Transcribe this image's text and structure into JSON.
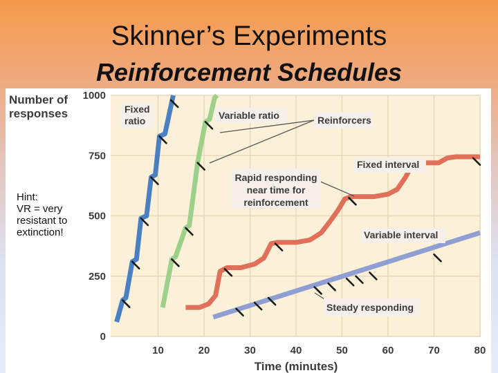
{
  "slide": {
    "title": "Skinner’s Experiments",
    "subtitle": "Reinforcement Schedules"
  },
  "hint": {
    "lines": [
      "Hint:",
      "VR = very",
      "resistant to",
      "extinction!"
    ]
  },
  "colors": {
    "plot_bg": "#fbf0d8",
    "grid": "#e8d9bb",
    "fixed_ratio": "#4a7fc1",
    "variable_ratio": "#9dd08a",
    "fixed_interval": "#e0705a",
    "variable_interval": "#8f9fd3",
    "label_box": "#f7f0ea"
  },
  "chart_data": {
    "type": "line",
    "title": "",
    "xlabel": "Time (minutes)",
    "ylabel": [
      "Number of",
      "responses"
    ],
    "xlim": [
      0,
      80
    ],
    "ylim": [
      0,
      1000
    ],
    "xticks": [
      10,
      20,
      30,
      40,
      50,
      60,
      70,
      80
    ],
    "yticks": [
      0,
      250,
      500,
      750,
      1000
    ],
    "series": [
      {
        "name": "Fixed ratio",
        "label_lines": [
          "Fixed",
          "ratio"
        ],
        "color_key": "fixed_ratio",
        "points": [
          [
            1,
            60
          ],
          [
            2.3,
            150
          ],
          [
            3,
            160
          ],
          [
            4.4,
            310
          ],
          [
            5.3,
            320
          ],
          [
            6.3,
            490
          ],
          [
            7.5,
            500
          ],
          [
            8.5,
            660
          ],
          [
            9.4,
            670
          ],
          [
            10.3,
            830
          ],
          [
            11.5,
            840
          ],
          [
            13.3,
            1000
          ]
        ],
        "reinforcers": [
          [
            2.3,
            150
          ],
          [
            4.4,
            310
          ],
          [
            6.3,
            490
          ],
          [
            8.5,
            660
          ],
          [
            10.3,
            830
          ],
          [
            12.8,
            980
          ]
        ]
      },
      {
        "name": "Variable ratio",
        "label_lines": [
          "Variable ratio"
        ],
        "color_key": "variable_ratio",
        "points": [
          [
            11,
            120
          ],
          [
            13,
            320
          ],
          [
            13.8,
            330
          ],
          [
            16,
            450
          ],
          [
            16.8,
            460
          ],
          [
            18.6,
            720
          ],
          [
            20.3,
            890
          ],
          [
            21.2,
            900
          ],
          [
            22.3,
            990
          ],
          [
            22.8,
            1000
          ]
        ],
        "reinforcers": [
          [
            13,
            320
          ],
          [
            16,
            450
          ],
          [
            18.6,
            720
          ],
          [
            20.3,
            890
          ]
        ]
      },
      {
        "name": "Fixed interval",
        "label_lines": [
          "Fixed interval"
        ],
        "color_key": "fixed_interval",
        "points": [
          [
            16,
            120
          ],
          [
            19,
            120
          ],
          [
            21,
            135
          ],
          [
            22.5,
            170
          ],
          [
            23.5,
            270
          ],
          [
            25,
            285
          ],
          [
            28,
            285
          ],
          [
            31,
            300
          ],
          [
            33,
            325
          ],
          [
            34.6,
            385
          ],
          [
            36,
            390
          ],
          [
            40,
            390
          ],
          [
            43,
            400
          ],
          [
            45.5,
            430
          ],
          [
            47.5,
            480
          ],
          [
            49,
            520
          ],
          [
            50.6,
            570
          ],
          [
            52,
            580
          ],
          [
            57,
            580
          ],
          [
            60,
            590
          ],
          [
            62,
            610
          ],
          [
            63.8,
            660
          ],
          [
            65.2,
            710
          ],
          [
            68,
            720
          ],
          [
            71,
            720
          ],
          [
            72.9,
            740
          ],
          [
            74.7,
            745
          ],
          [
            80,
            745
          ]
        ],
        "reinforcers": [
          [
            24.5,
            280
          ],
          [
            35.5,
            385
          ],
          [
            51.5,
            575
          ],
          [
            65,
            715
          ],
          [
            78.5,
            740
          ]
        ]
      },
      {
        "name": "Variable interval",
        "label_lines": [
          "Variable interval"
        ],
        "color_key": "variable_interval",
        "points": [
          [
            22,
            80
          ],
          [
            80,
            430
          ]
        ],
        "reinforcers": [
          [
            27,
            115
          ],
          [
            31,
            140
          ],
          [
            34,
            160
          ],
          [
            44,
            205
          ],
          [
            47,
            220
          ],
          [
            51,
            240
          ],
          [
            53,
            250
          ],
          [
            56,
            265
          ],
          [
            70,
            340
          ]
        ]
      }
    ],
    "annotations": [
      {
        "id": "reinforcers",
        "text_lines": [
          "Reinforcers"
        ]
      },
      {
        "id": "rapid",
        "text_lines": [
          "Rapid responding",
          "near time for",
          "reinforcement"
        ]
      },
      {
        "id": "steady",
        "text_lines": [
          "Steady responding"
        ]
      }
    ]
  }
}
